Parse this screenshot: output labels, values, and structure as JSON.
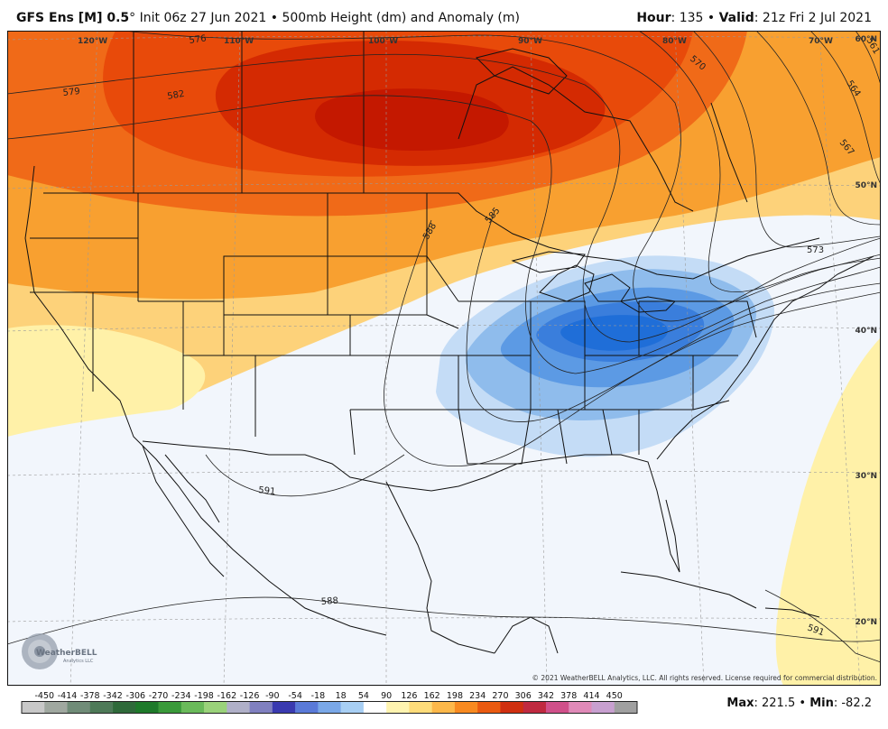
{
  "header": {
    "model": "GFS Ens [M] 0.5",
    "degree_symbol": "°",
    "init": "Init 06z 27 Jun 2021",
    "separator": "•",
    "field": "500mb Height (dm) and Anomaly (m)",
    "hour_label": "Hour",
    "hour_value": ": 135",
    "valid_label": "Valid",
    "valid_value": ": 21z Fri 2 Jul 2021"
  },
  "map": {
    "longitude_labels": [
      "120°W",
      "110°W",
      "100°W",
      "90°W",
      "80°W",
      "70°W"
    ],
    "latitude_labels": [
      "60°N",
      "50°N",
      "40°N",
      "30°N",
      "20°N"
    ],
    "contour_labels": [
      "576",
      "579",
      "582",
      "585",
      "588",
      "591",
      "573",
      "570",
      "567",
      "564",
      "561",
      "588",
      "591"
    ],
    "copyright": "© 2021 WeatherBELL Analytics, LLC. All rights reserved. License required for commercial distribution.",
    "logo_text": "WeatherBELL",
    "logo_subtext": "Analytics LLC",
    "colors": {
      "background": "#f2f6fc",
      "ridge_core": "#c71a00",
      "ridge_mid": "#f05a0a",
      "ridge_outer": "#f8a030",
      "ridge_fringe": "#fdd27a",
      "light_yellow": "#fff4b0",
      "trough_core": "#1f6ed8",
      "trough_mid": "#4f90e0",
      "trough_outer": "#a8c8f0"
    }
  },
  "colorbar": {
    "ticks": [
      "-450",
      "-414",
      "-378",
      "-342",
      "-306",
      "-270",
      "-234",
      "-198",
      "-162",
      "-126",
      "-90",
      "-54",
      "-18",
      "18",
      "54",
      "90",
      "126",
      "162",
      "198",
      "234",
      "270",
      "306",
      "342",
      "378",
      "414",
      "450"
    ],
    "colors": [
      "#c8c8c8",
      "#a0a8a0",
      "#708c78",
      "#4e7a58",
      "#2f6a3a",
      "#1e7a2a",
      "#3a9a3a",
      "#6aba5a",
      "#9ad27a",
      "#b0b0c8",
      "#8080c0",
      "#3a3ab0",
      "#5a7ad8",
      "#7aa8e8",
      "#a8cff4",
      "#ffffff",
      "#fff4b0",
      "#fedc7a",
      "#fdb84a",
      "#f88a20",
      "#ea5a10",
      "#d03010",
      "#c02a40",
      "#d0508a",
      "#e08ab8",
      "#c8a0d0",
      "#a0a0a0"
    ]
  },
  "stats": {
    "max_label": "Max",
    "max_value": ": 221.5",
    "sep": "•",
    "min_label": "Min",
    "min_value": ": -82.2"
  }
}
